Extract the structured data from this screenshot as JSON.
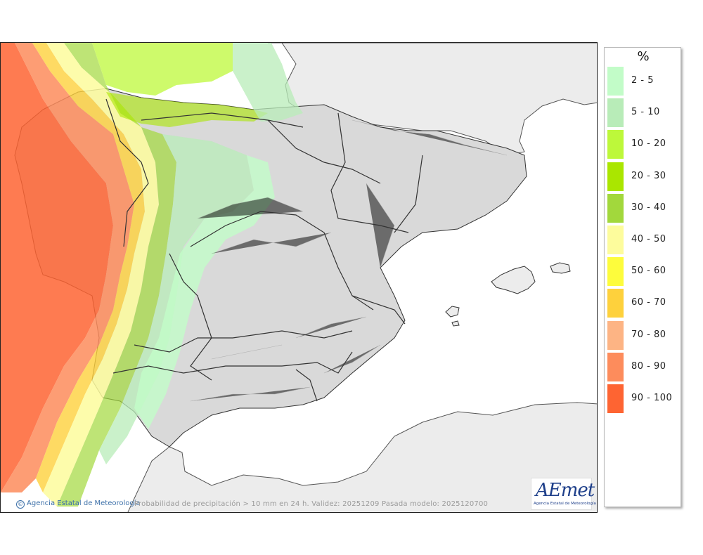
{
  "map": {
    "caption": "Probabilidad de precipitación > 10 mm en 24 h. Validez: 20251209 Pasada modelo: 2025120700",
    "credit": "Agencia Estatal de Meteorología",
    "credit_icon": "©",
    "logo_text": "AEmet",
    "logo_subtitle": "Agencia Estatal de Meteorología"
  },
  "legend": {
    "title": "%",
    "items": [
      {
        "label": "2 - 5",
        "color": "#c2fcc8"
      },
      {
        "label": "5 - 10",
        "color": "#b8ecb8"
      },
      {
        "label": "10 - 20",
        "color": "#bdf83a"
      },
      {
        "label": "20 - 30",
        "color": "#aae600"
      },
      {
        "label": "30 - 40",
        "color": "#a2d83c"
      },
      {
        "label": "40 - 50",
        "color": "#fdfc9c"
      },
      {
        "label": "50 - 60",
        "color": "#fdfc3c"
      },
      {
        "label": "60 - 70",
        "color": "#fed13c"
      },
      {
        "label": "70 - 80",
        "color": "#fdb484"
      },
      {
        "label": "80 - 90",
        "color": "#fd8c5c"
      },
      {
        "label": "90 - 100",
        "color": "#fe6432"
      }
    ]
  }
}
